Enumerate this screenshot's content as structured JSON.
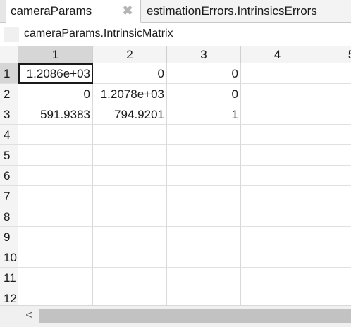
{
  "tabs": [
    {
      "label": "cameraParams",
      "active": true
    },
    {
      "label": "estimationErrors.IntrinsicsErrors",
      "active": false
    }
  ],
  "variable": {
    "name": "cameraParams.IntrinsicMatrix",
    "icon": "matrix-icon"
  },
  "columns": [
    "1",
    "2",
    "3",
    "4",
    "5"
  ],
  "rows": [
    "1",
    "2",
    "3",
    "4",
    "5",
    "6",
    "7",
    "8",
    "9",
    "10",
    "11",
    "12"
  ],
  "cells": [
    [
      "1.2086e+03",
      "0",
      "0",
      ""
    ],
    [
      "0",
      "1.2078e+03",
      "0",
      ""
    ],
    [
      "591.9383",
      "794.9201",
      "1",
      ""
    ]
  ],
  "scrollbar": {
    "left_arrow": "<"
  },
  "close_glyph": "✖"
}
